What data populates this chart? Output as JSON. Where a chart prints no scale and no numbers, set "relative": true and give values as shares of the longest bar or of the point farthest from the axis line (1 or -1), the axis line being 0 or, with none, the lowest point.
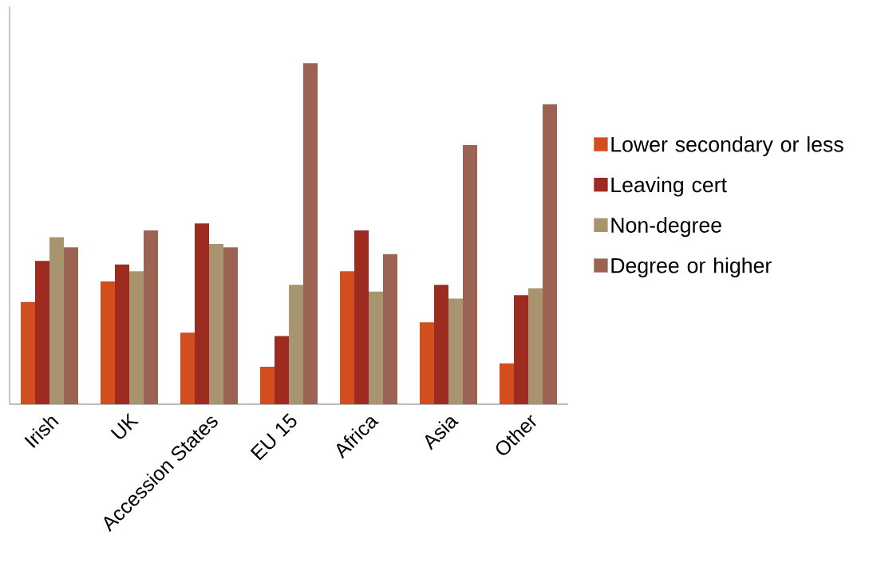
{
  "chart_data": {
    "type": "bar",
    "relative": true,
    "legend": "right",
    "categories": [
      "Irish",
      "UK",
      "Accession States",
      "EU 15",
      "Africa",
      "Asia",
      "Other"
    ],
    "series": [
      {
        "name": "Lower secondary or less",
        "color": "#d24e1e",
        "values": [
          0.3,
          0.36,
          0.21,
          0.11,
          0.39,
          0.24,
          0.12
        ]
      },
      {
        "name": "Leaving cert",
        "color": "#9e2b20",
        "values": [
          0.42,
          0.41,
          0.53,
          0.2,
          0.51,
          0.35,
          0.32
        ]
      },
      {
        "name": "Non-degree",
        "color": "#a8956f",
        "values": [
          0.49,
          0.39,
          0.47,
          0.35,
          0.33,
          0.31,
          0.34
        ]
      },
      {
        "name": "Degree or higher",
        "color": "#9a6352",
        "values": [
          0.46,
          0.51,
          0.46,
          1,
          0.44,
          0.76,
          0.88
        ]
      }
    ]
  }
}
